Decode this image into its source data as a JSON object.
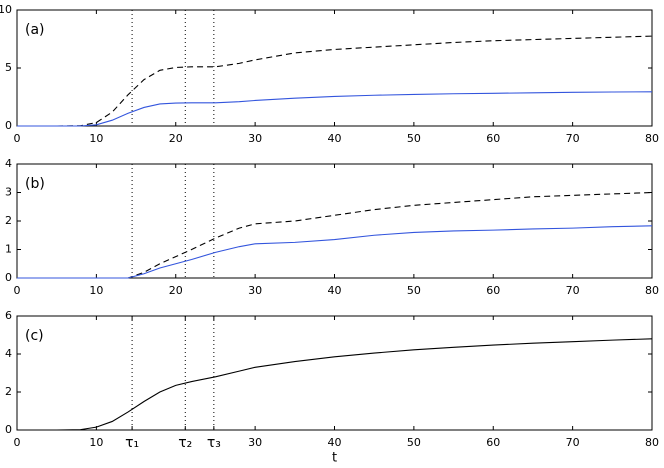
{
  "chart_data": [
    {
      "type": "line",
      "annotation": "(a)",
      "x": [
        0,
        5,
        8,
        10,
        12,
        14,
        16,
        18,
        20,
        22,
        25,
        28,
        30,
        35,
        40,
        45,
        50,
        55,
        60,
        65,
        70,
        75,
        80
      ],
      "series": [
        {
          "color": "#000000",
          "style": "dashed",
          "values": [
            0,
            0,
            0.02,
            0.3,
            1.2,
            2.7,
            4.0,
            4.8,
            5.05,
            5.1,
            5.1,
            5.4,
            5.7,
            6.3,
            6.6,
            6.8,
            7.0,
            7.2,
            7.35,
            7.45,
            7.55,
            7.65,
            7.75
          ]
        },
        {
          "color": "#3355dd",
          "style": "solid",
          "values": [
            0,
            0,
            0,
            0.1,
            0.5,
            1.1,
            1.6,
            1.9,
            1.98,
            2.0,
            2.0,
            2.1,
            2.2,
            2.4,
            2.55,
            2.65,
            2.72,
            2.78,
            2.82,
            2.86,
            2.9,
            2.93,
            2.95
          ]
        }
      ],
      "xlim": [
        0,
        80
      ],
      "xticks": [
        0,
        10,
        20,
        30,
        40,
        50,
        60,
        70,
        80
      ],
      "ylim": [
        0,
        10
      ],
      "yticks": [
        0,
        5,
        10
      ],
      "vlines": [
        14.5,
        21.2,
        24.8
      ]
    },
    {
      "type": "line",
      "annotation": "(b)",
      "x": [
        0,
        5,
        8,
        10,
        12,
        14,
        16,
        18,
        20,
        22,
        25,
        28,
        30,
        35,
        40,
        45,
        50,
        55,
        60,
        65,
        70,
        75,
        80
      ],
      "series": [
        {
          "color": "#000000",
          "style": "dashed",
          "values": [
            0,
            0,
            0,
            0,
            0,
            0,
            0.2,
            0.5,
            0.75,
            1.0,
            1.4,
            1.75,
            1.9,
            2.0,
            2.2,
            2.4,
            2.55,
            2.65,
            2.75,
            2.85,
            2.9,
            2.95,
            3.0
          ]
        },
        {
          "color": "#3355dd",
          "style": "solid",
          "values": [
            0,
            0,
            0,
            0,
            0,
            0,
            0.15,
            0.35,
            0.5,
            0.65,
            0.9,
            1.1,
            1.2,
            1.25,
            1.35,
            1.5,
            1.6,
            1.65,
            1.68,
            1.72,
            1.75,
            1.8,
            1.83
          ]
        }
      ],
      "xlim": [
        0,
        80
      ],
      "xticks": [
        0,
        10,
        20,
        30,
        40,
        50,
        60,
        70,
        80
      ],
      "ylim": [
        0,
        4
      ],
      "yticks": [
        0,
        1,
        2,
        3,
        4
      ],
      "vlines": [
        14.5,
        21.2,
        24.8
      ]
    },
    {
      "type": "line",
      "annotation": "(c)",
      "xlabel": "t",
      "x": [
        0,
        5,
        8,
        10,
        12,
        14,
        16,
        18,
        20,
        22,
        25,
        28,
        30,
        35,
        40,
        45,
        50,
        55,
        60,
        65,
        70,
        75,
        80
      ],
      "series": [
        {
          "color": "#000000",
          "style": "solid",
          "values": [
            0,
            0,
            0.02,
            0.15,
            0.45,
            0.95,
            1.5,
            2.0,
            2.35,
            2.55,
            2.8,
            3.1,
            3.3,
            3.6,
            3.85,
            4.05,
            4.22,
            4.35,
            4.47,
            4.57,
            4.65,
            4.73,
            4.8
          ]
        }
      ],
      "xlim": [
        0,
        80
      ],
      "xticks": [
        0,
        10,
        {
          "value": 14.5,
          "label": "τ₁"
        },
        {
          "value": 21.2,
          "label": "τ₂"
        },
        {
          "value": 24.8,
          "label": "τ₃"
        },
        30,
        40,
        50,
        60,
        70,
        80
      ],
      "ylim": [
        0,
        6
      ],
      "yticks": [
        0,
        2,
        4,
        6
      ],
      "vlines": [
        14.5,
        21.2,
        24.8
      ]
    }
  ]
}
